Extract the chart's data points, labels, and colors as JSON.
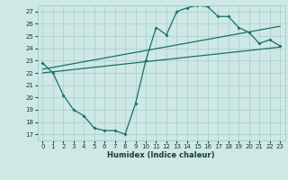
{
  "xlabel": "Humidex (Indice chaleur)",
  "background_color": "#cde8e5",
  "grid_color": "#a8ceca",
  "line_color": "#1a6e68",
  "xlim": [
    -0.5,
    23.5
  ],
  "ylim": [
    16.5,
    27.5
  ],
  "xticks": [
    0,
    1,
    2,
    3,
    4,
    5,
    6,
    7,
    8,
    9,
    10,
    11,
    12,
    13,
    14,
    15,
    16,
    17,
    18,
    19,
    20,
    21,
    22,
    23
  ],
  "yticks": [
    17,
    18,
    19,
    20,
    21,
    22,
    23,
    24,
    25,
    26,
    27
  ],
  "line1_x": [
    0,
    1,
    2,
    3,
    4,
    5,
    6,
    7,
    8,
    9,
    10,
    11,
    12,
    13,
    14,
    15,
    16,
    17,
    18,
    19,
    20,
    21,
    22,
    23
  ],
  "line1_y": [
    22.8,
    22.0,
    20.2,
    19.0,
    18.5,
    17.5,
    17.3,
    17.3,
    17.0,
    19.5,
    23.0,
    25.7,
    25.1,
    27.0,
    27.3,
    27.5,
    27.4,
    26.6,
    26.6,
    25.7,
    25.3,
    24.4,
    24.7,
    24.2
  ],
  "line2_x": [
    0,
    23
  ],
  "line2_y": [
    22.0,
    24.1
  ],
  "line3_x": [
    0,
    23
  ],
  "line3_y": [
    22.3,
    25.8
  ]
}
